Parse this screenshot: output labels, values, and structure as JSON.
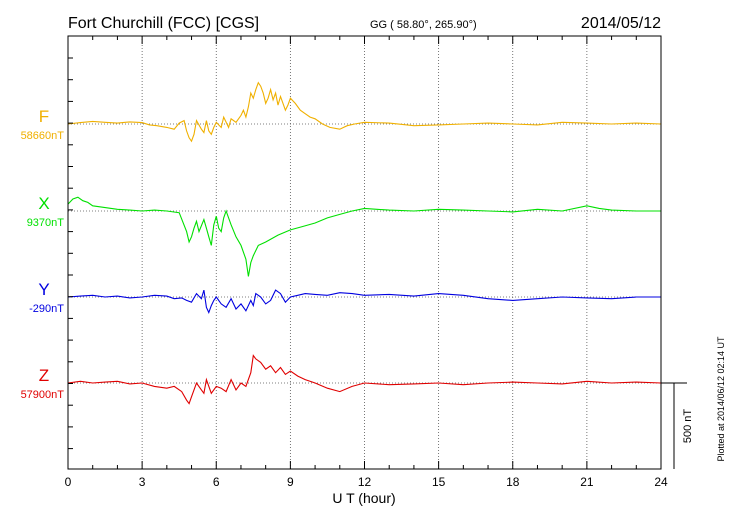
{
  "chart_data": {
    "type": "line",
    "title": "Fort Churchill (FCC)  [CGS]",
    "coords": "GG ( 58.80°, 265.90°)",
    "date": "2014/05/12",
    "xlabel": "U T (hour)",
    "xlim": [
      0,
      24
    ],
    "xticks": [
      "0",
      "3",
      "6",
      "9",
      "12",
      "15",
      "18",
      "21",
      "24"
    ],
    "scale_label": "500 nT",
    "scale_value_nT": 500,
    "plotted_note": "Plotted at 2014/06/12 02:14 UT",
    "grid": true,
    "series": [
      {
        "name": "F",
        "baseline_label": "58660nT",
        "baseline_nT": 58660,
        "color": "#f0b000",
        "x": [
          0,
          0.5,
          1,
          1.5,
          2,
          2.5,
          3,
          3.3,
          3.6,
          4,
          4.3,
          4.5,
          4.7,
          4.8,
          4.9,
          5.0,
          5.1,
          5.2,
          5.4,
          5.5,
          5.6,
          5.7,
          5.8,
          5.9,
          6.0,
          6.1,
          6.2,
          6.3,
          6.5,
          6.6,
          6.8,
          7.0,
          7.1,
          7.2,
          7.3,
          7.4,
          7.5,
          7.6,
          7.7,
          7.8,
          7.9,
          8.0,
          8.1,
          8.2,
          8.3,
          8.4,
          8.5,
          8.6,
          8.7,
          8.8,
          8.9,
          9.0,
          9.2,
          9.4,
          9.6,
          9.8,
          10.0,
          10.3,
          10.6,
          11.0,
          11.3,
          11.6,
          12,
          13,
          14,
          15,
          16,
          17,
          18,
          19,
          20,
          21,
          22,
          23,
          24
        ],
        "y": [
          0,
          8,
          15,
          10,
          5,
          12,
          8,
          -5,
          -10,
          -20,
          -30,
          5,
          20,
          -40,
          -80,
          -100,
          -60,
          20,
          -30,
          -50,
          20,
          -40,
          -60,
          -20,
          10,
          -5,
          -20,
          40,
          -20,
          30,
          10,
          50,
          80,
          40,
          100,
          180,
          150,
          200,
          240,
          220,
          180,
          120,
          150,
          200,
          140,
          180,
          110,
          160,
          120,
          80,
          110,
          150,
          120,
          80,
          60,
          40,
          30,
          0,
          -20,
          -30,
          -10,
          0,
          10,
          5,
          -10,
          -5,
          0,
          5,
          0,
          -5,
          10,
          5,
          0,
          5,
          0
        ]
      },
      {
        "name": "X",
        "baseline_label": "9370nT",
        "baseline_nT": 9370,
        "color": "#00e000",
        "x": [
          0,
          0.2,
          0.4,
          0.6,
          0.8,
          1.0,
          1.5,
          2,
          2.5,
          3,
          3.5,
          4,
          4.5,
          4.8,
          4.9,
          5.0,
          5.1,
          5.2,
          5.3,
          5.5,
          5.6,
          5.7,
          5.8,
          5.9,
          6.0,
          6.1,
          6.2,
          6.3,
          6.4,
          6.6,
          6.8,
          7.0,
          7.2,
          7.3,
          7.4,
          7.5,
          7.7,
          8.0,
          8.5,
          9.0,
          9.5,
          10,
          10.5,
          11,
          11.5,
          12,
          12.5,
          13,
          14,
          15,
          16,
          17,
          18,
          19,
          20,
          21,
          21.5,
          22,
          23,
          24
        ],
        "y": [
          40,
          70,
          80,
          60,
          50,
          30,
          20,
          10,
          5,
          0,
          5,
          0,
          -10,
          -120,
          -180,
          -150,
          -100,
          -60,
          -120,
          -50,
          -100,
          -150,
          -200,
          -80,
          -30,
          -100,
          -120,
          -40,
          0,
          -80,
          -150,
          -200,
          -280,
          -380,
          -300,
          -260,
          -200,
          -180,
          -140,
          -110,
          -90,
          -70,
          -40,
          -20,
          0,
          15,
          10,
          5,
          0,
          10,
          5,
          0,
          -5,
          10,
          0,
          30,
          15,
          5,
          0,
          0
        ]
      },
      {
        "name": "Y",
        "baseline_label": "-290nT",
        "baseline_nT": -290,
        "color": "#0000e0",
        "x": [
          0,
          0.5,
          1,
          1.5,
          2,
          2.5,
          3,
          3.5,
          4,
          4.3,
          4.6,
          4.8,
          5.0,
          5.2,
          5.4,
          5.5,
          5.6,
          5.7,
          5.8,
          5.9,
          6.0,
          6.2,
          6.4,
          6.6,
          6.8,
          7.0,
          7.2,
          7.4,
          7.5,
          7.6,
          7.8,
          8.0,
          8.2,
          8.4,
          8.6,
          8.8,
          9.0,
          9.3,
          9.6,
          10,
          10.5,
          11,
          11.5,
          12,
          13,
          14,
          15,
          16,
          17,
          18,
          19,
          20,
          21,
          22,
          23,
          24
        ],
        "y": [
          0,
          5,
          10,
          0,
          5,
          -5,
          0,
          10,
          5,
          -10,
          -5,
          -20,
          -30,
          20,
          -10,
          40,
          -60,
          -90,
          -50,
          -20,
          0,
          -40,
          -60,
          -10,
          -70,
          -40,
          -80,
          -20,
          -50,
          20,
          0,
          -40,
          -20,
          40,
          20,
          -30,
          0,
          10,
          20,
          15,
          10,
          25,
          20,
          10,
          15,
          5,
          20,
          10,
          -10,
          -20,
          -10,
          0,
          -5,
          -10,
          0,
          0
        ]
      },
      {
        "name": "Z",
        "baseline_label": "57900nT",
        "baseline_nT": 57900,
        "color": "#e00000",
        "x": [
          0,
          0.5,
          1,
          1.5,
          2,
          2.5,
          3,
          3.5,
          4,
          4.3,
          4.6,
          4.8,
          4.9,
          5.0,
          5.1,
          5.2,
          5.4,
          5.5,
          5.6,
          5.8,
          6.0,
          6.2,
          6.4,
          6.6,
          6.8,
          7.0,
          7.2,
          7.4,
          7.5,
          7.6,
          7.8,
          8.0,
          8.2,
          8.4,
          8.6,
          8.8,
          9.0,
          9.3,
          9.6,
          10,
          10.5,
          11,
          11.5,
          12,
          13,
          14,
          15,
          16,
          17,
          18,
          19,
          20,
          21,
          22,
          23,
          24
        ],
        "y": [
          0,
          10,
          0,
          5,
          10,
          -5,
          0,
          -20,
          -30,
          -20,
          -50,
          -100,
          -120,
          -80,
          -40,
          0,
          -40,
          -60,
          20,
          -60,
          -20,
          -30,
          -50,
          20,
          -40,
          0,
          -20,
          60,
          160,
          140,
          120,
          80,
          100,
          60,
          90,
          50,
          70,
          40,
          20,
          0,
          -30,
          -50,
          -20,
          0,
          -10,
          -5,
          0,
          -10,
          0,
          5,
          0,
          -5,
          10,
          0,
          5,
          0
        ]
      }
    ]
  }
}
